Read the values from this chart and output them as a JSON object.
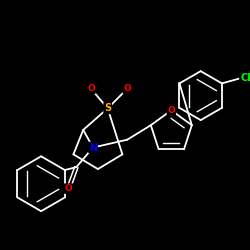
{
  "background": "#000000",
  "bond_color": "#ffffff",
  "atom_colors": {
    "O": "#ff0000",
    "S": "#ffaa00",
    "N": "#0000ff",
    "Cl": "#00ff00",
    "C": "#ffffff"
  },
  "figsize": [
    2.5,
    2.5
  ],
  "dpi": 100
}
